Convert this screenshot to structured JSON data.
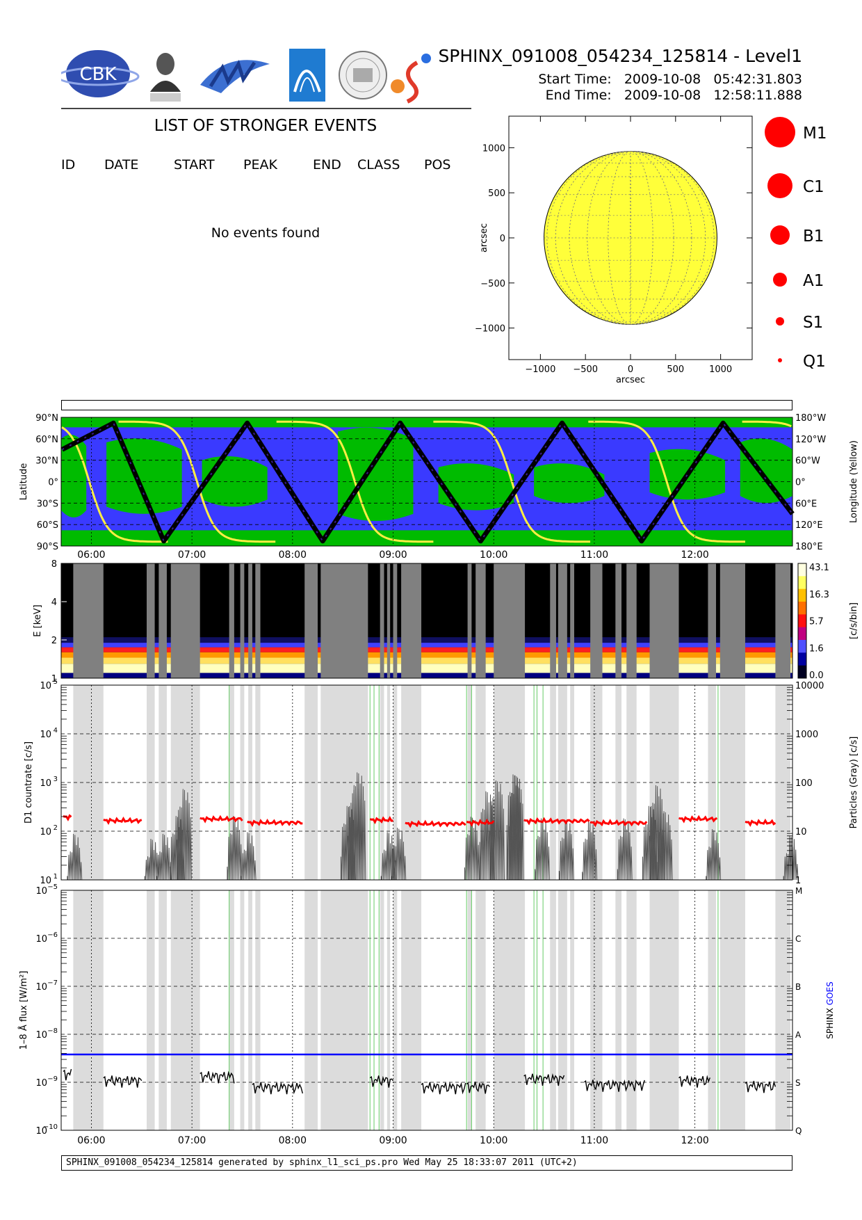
{
  "header": {
    "title": "SPHINX_091008_054234_125814 - Level1",
    "start_label": "Start Time:",
    "start_date": "2009-10-08",
    "start_time": "05:42:31.803",
    "end_label": "End Time:",
    "end_date": "2009-10-08",
    "end_time": "12:58:11.888",
    "logo_text": "CBK"
  },
  "events": {
    "title": "LIST OF STRONGER EVENTS",
    "columns": [
      "ID",
      "DATE",
      "START",
      "PEAK",
      "END",
      "CLASS",
      "POS"
    ],
    "empty_message": "No events found"
  },
  "footer": {
    "text": "SPHINX_091008_054234_125814 generated by sphinx_l1_sci_ps.pro Wed May 25 18:33:07 2011 (UTC+2)"
  },
  "colors": {
    "sun": "#ffff3a",
    "legend_dot": "#ff0000",
    "ocean": "#3a3aff",
    "land": "#00bb00",
    "orbit": "#000000",
    "longitude": "#ffee44",
    "gray_band_dark": "#808080",
    "gray_band_light": "#dcdcdc",
    "red_trace": "#ff0000",
    "goes": "#0000ff",
    "green_marker": "#66cc66"
  },
  "chart_data": [
    {
      "type": "scatter",
      "name": "sun-disk",
      "xlabel": "arcsec",
      "ylabel": "arcsec",
      "xlim": [
        -1350,
        1350
      ],
      "ylim": [
        -1350,
        1350
      ],
      "xticks": [
        -1000,
        -500,
        0,
        500,
        1000
      ],
      "yticks": [
        -1000,
        -500,
        0,
        500,
        1000
      ],
      "xtick_labels": [
        "−1000",
        "−500",
        "0",
        "500",
        "1000"
      ],
      "ytick_labels": [
        "−1000",
        "−500",
        "0",
        "500",
        "1000"
      ],
      "solar_radius": 960,
      "grid": true
    },
    {
      "type": "scatter",
      "name": "flare-class-legend",
      "classes": [
        "M1",
        "C1",
        "B1",
        "A1",
        "S1",
        "Q1"
      ]
    },
    {
      "type": "line",
      "name": "orbit-map",
      "xlim": [
        5.7,
        12.97
      ],
      "xticks": [
        6,
        7,
        8,
        9,
        10,
        11,
        12
      ],
      "xtick_labels": [
        "06:00",
        "07:00",
        "08:00",
        "09:00",
        "10:00",
        "11:00",
        "12:00"
      ],
      "ylabel_left": "Latitude",
      "ylabel_right": "Longitude (Yellow)",
      "ylim": [
        -90,
        90
      ],
      "left_ticks": [
        "90°N",
        "60°N",
        "30°N",
        "0°",
        "30°S",
        "60°S",
        "90°S"
      ],
      "right_ticks": [
        "180°W",
        "120°W",
        "60°W",
        "0°",
        "60°E",
        "120°E",
        "180°E"
      ],
      "tick_values": [
        90,
        60,
        30,
        0,
        -30,
        -60,
        -90
      ],
      "orbit_turning_points": {
        "t": [
          5.71,
          6.22,
          6.72,
          7.55,
          8.3,
          9.07,
          9.87,
          10.68,
          11.47,
          12.28,
          12.97
        ],
        "lat": [
          45,
          82,
          -83,
          82,
          -83,
          82,
          -83,
          82,
          -83,
          82,
          -45
        ]
      }
    },
    {
      "type": "heatmap",
      "name": "spectrogram",
      "ylabel": "E [keV]",
      "yticks": [
        1,
        2,
        4,
        8
      ],
      "ylim": [
        1,
        8
      ],
      "colorbar_label": "[c/s/bin]",
      "colorbar_ticks": [
        "43.1",
        "16.3",
        "5.7",
        "1.6",
        "0.0"
      ],
      "particle_gaps": [
        [
          5.82,
          6.12
        ],
        [
          6.55,
          6.63
        ],
        [
          6.67,
          6.75
        ],
        [
          6.79,
          7.08
        ],
        [
          7.37,
          7.42
        ],
        [
          7.48,
          7.52
        ],
        [
          7.56,
          7.6
        ],
        [
          7.63,
          7.68
        ],
        [
          8.12,
          8.25
        ],
        [
          8.28,
          8.75
        ],
        [
          8.87,
          8.91
        ],
        [
          8.94,
          8.97
        ],
        [
          9.0,
          9.04
        ],
        [
          9.08,
          9.28
        ],
        [
          9.74,
          9.78
        ],
        [
          9.82,
          9.92
        ],
        [
          10.0,
          10.31
        ],
        [
          10.56,
          10.62
        ],
        [
          10.64,
          10.73
        ],
        [
          10.76,
          10.8
        ],
        [
          10.96,
          11.08
        ],
        [
          11.21,
          11.27
        ],
        [
          11.32,
          11.42
        ],
        [
          11.55,
          11.84
        ],
        [
          12.13,
          12.21
        ],
        [
          12.25,
          12.5
        ],
        [
          12.8,
          12.95
        ]
      ]
    },
    {
      "type": "line",
      "name": "d1-countrate",
      "ylabel": "D1 countrate [c/s]",
      "ylabel_right": "Particles (Gray) [c/s]",
      "yscale": "log",
      "ylim": [
        10,
        100000
      ],
      "yticks": [
        10,
        100,
        1000,
        10000,
        100000
      ],
      "ytick_labels": [
        "10",
        "10",
        "10",
        "10",
        "10"
      ],
      "ytick_exponents": [
        "1",
        "2",
        "3",
        "4",
        "5"
      ],
      "right_ticks": [
        "1",
        "10",
        "100",
        "1000",
        "10000"
      ],
      "red_series": {
        "name": "D1",
        "segments": [
          [
            5.72,
            5.8,
            195
          ],
          [
            6.12,
            6.5,
            165
          ],
          [
            7.08,
            7.5,
            178
          ],
          [
            7.55,
            8.1,
            150
          ],
          [
            8.77,
            9.0,
            170
          ],
          [
            9.12,
            9.72,
            142
          ],
          [
            9.73,
            10.0,
            150
          ],
          [
            10.3,
            10.95,
            162
          ],
          [
            10.96,
            11.52,
            148
          ],
          [
            11.84,
            12.22,
            178
          ],
          [
            12.5,
            12.8,
            150
          ]
        ]
      },
      "gray_peaks": {
        "t": [
          5.83,
          6.6,
          6.72,
          6.85,
          6.92,
          7.42,
          7.56,
          8.55,
          8.62,
          8.65,
          8.95,
          9.05,
          9.78,
          9.93,
          10.03,
          10.2,
          10.22,
          10.48,
          10.72,
          10.95,
          11.3,
          11.55,
          11.62,
          11.7,
          12.18,
          12.95
        ],
        "v": [
          120,
          95,
          120,
          280,
          1000,
          280,
          130,
          450,
          1200,
          2200,
          130,
          160,
          270,
          900,
          1500,
          2000,
          1900,
          250,
          230,
          220,
          250,
          450,
          1200,
          350,
          150,
          110
        ]
      }
    },
    {
      "type": "line",
      "name": "flux-1-8A",
      "ylabel": "1–8 Å flux [W/m²]",
      "yscale": "log",
      "ylim": [
        1e-10,
        1e-05
      ],
      "yticks": [
        1e-10,
        1e-09,
        1e-08,
        1e-07,
        1e-06,
        1e-05
      ],
      "ytick_labels": [
        "10",
        "10",
        "10",
        "10",
        "10",
        "10"
      ],
      "ytick_exponents": [
        "−10",
        "−9",
        "−8",
        "−7",
        "−6",
        "−5"
      ],
      "right_ticks": [
        "Q",
        "S",
        "A",
        "B",
        "C",
        "M"
      ],
      "series": [
        {
          "name": "SPHINX",
          "segments": [
            [
              5.72,
              5.8,
              1.5e-09
            ],
            [
              6.12,
              6.5,
              1.1e-09
            ],
            [
              7.08,
              7.42,
              1.35e-09
            ],
            [
              7.6,
              8.1,
              8e-10
            ],
            [
              8.77,
              9.0,
              1.1e-09
            ],
            [
              9.28,
              9.72,
              8e-10
            ],
            [
              9.73,
              9.96,
              8.2e-10
            ],
            [
              10.3,
              10.7,
              1.2e-09
            ],
            [
              10.9,
              11.5,
              9e-10
            ],
            [
              11.84,
              12.15,
              1.1e-09
            ],
            [
              12.5,
              12.8,
              8.5e-10
            ]
          ]
        },
        {
          "name": "GOES",
          "value": 3.8e-09
        }
      ],
      "green_markers": [
        7.37,
        8.77,
        8.81,
        8.86,
        9.73,
        9.78,
        10.4,
        10.43,
        10.49,
        12.23
      ]
    }
  ]
}
